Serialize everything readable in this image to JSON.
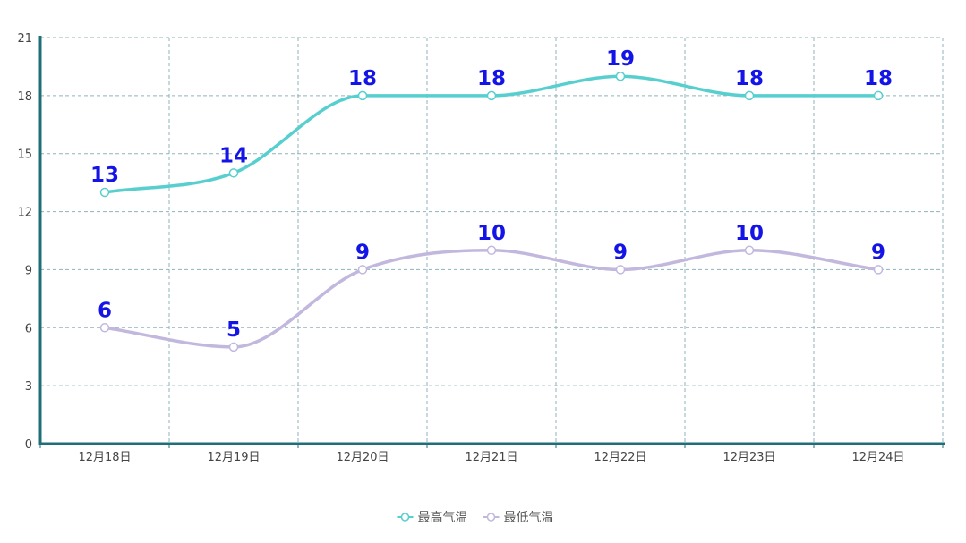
{
  "chart_data": {
    "type": "line",
    "categories": [
      "12月18日",
      "12月19日",
      "12月20日",
      "12月21日",
      "12月22日",
      "12月23日",
      "12月24日"
    ],
    "series": [
      {
        "name": "最高气温",
        "color": "#58cfcf",
        "values": [
          13,
          14,
          18,
          18,
          19,
          18,
          18
        ]
      },
      {
        "name": "最低气温",
        "color": "#c2b8dd",
        "values": [
          6,
          5,
          9,
          10,
          9,
          10,
          9
        ]
      }
    ],
    "title": "",
    "xlabel": "",
    "ylabel": "",
    "ylim": [
      0,
      21
    ],
    "yticks": [
      0,
      3,
      6,
      9,
      12,
      15,
      18,
      21
    ],
    "grid": true,
    "smooth": true,
    "legend_position": "bottom-center",
    "label_color": "#1414e6",
    "axis_color": "#1f6f78",
    "grid_color": "#8fb3bb"
  }
}
